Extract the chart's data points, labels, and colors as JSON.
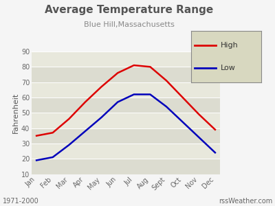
{
  "title": "Average Temperature Range",
  "subtitle": "Blue Hill,Massachusetts",
  "ylabel": "Fahrenheit",
  "footer_left": "1971-2000",
  "footer_right": "rssWeather.com",
  "months": [
    "Jan",
    "Feb",
    "Mar",
    "Apr",
    "May",
    "Jun",
    "Jul",
    "Aug",
    "Sept",
    "Oct",
    "Nov",
    "Dec"
  ],
  "high_temps": [
    35,
    37,
    46,
    57,
    67,
    76,
    81,
    80,
    71,
    60,
    49,
    39
  ],
  "low_temps": [
    19,
    21,
    29,
    38,
    47,
    57,
    62,
    62,
    54,
    44,
    34,
    24
  ],
  "high_color": "#dd0000",
  "low_color": "#0000bb",
  "ylim": [
    10,
    90
  ],
  "yticks": [
    10,
    20,
    30,
    40,
    50,
    60,
    70,
    80,
    90
  ],
  "outer_bg": "#f5f5f5",
  "band_colors": [
    "#dcdcd0",
    "#e8e8dc"
  ],
  "grid_color": "#ffffff",
  "title_color": "#555555",
  "subtitle_color": "#888888",
  "tick_color": "#666666",
  "legend_bg": "#d8d8c0",
  "legend_edge": "#888888",
  "line_width": 1.8,
  "title_fontsize": 11,
  "subtitle_fontsize": 8,
  "tick_fontsize": 7,
  "ylabel_fontsize": 8,
  "footer_fontsize": 7,
  "legend_fontsize": 8
}
